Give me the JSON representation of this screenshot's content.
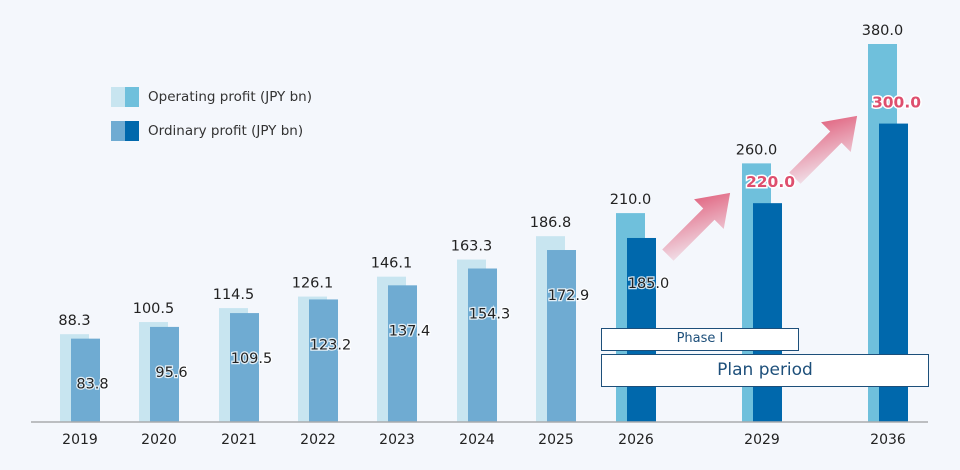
{
  "chart_data": {
    "type": "bar",
    "title": "",
    "xlabel": "",
    "ylabel": "",
    "ylim": [
      0,
      380
    ],
    "grid": false,
    "legend_position": "top-left",
    "categories": [
      "2019",
      "2020",
      "2021",
      "2022",
      "2023",
      "2024",
      "2025",
      "2026",
      "2029",
      "2036"
    ],
    "series": [
      {
        "name": "Operating profit (JPY bn)",
        "values": [
          88.3,
          100.5,
          114.5,
          126.1,
          146.1,
          163.3,
          186.8,
          210.0,
          260.0,
          380.0
        ],
        "labels": [
          "88.3",
          "100.5",
          "114.5",
          "126.1",
          "146.1",
          "163.3",
          "186.8",
          "210.0",
          "260.0",
          "380.0"
        ]
      },
      {
        "name": "Ordinary profit (JPY bn)",
        "values": [
          83.8,
          95.6,
          109.5,
          123.2,
          137.4,
          154.3,
          172.9,
          185.0,
          220.0,
          300.0
        ],
        "labels": [
          "83.8",
          "95.6",
          "109.5",
          "123.2",
          "137.4",
          "154.3",
          "172.9",
          "185.0",
          "220.0",
          "300.0"
        ]
      }
    ],
    "colors": {
      "operating_actual": "#c8e5f0",
      "ordinary_actual": "#6fabd2",
      "operating_plan": "#6fc0dc",
      "ordinary_plan": "#0068ac",
      "highlight_label": "#de4f6e",
      "arrow": "#de4f6e"
    },
    "annotations": {
      "phase": "Phase I",
      "plan_period": "Plan period"
    }
  }
}
